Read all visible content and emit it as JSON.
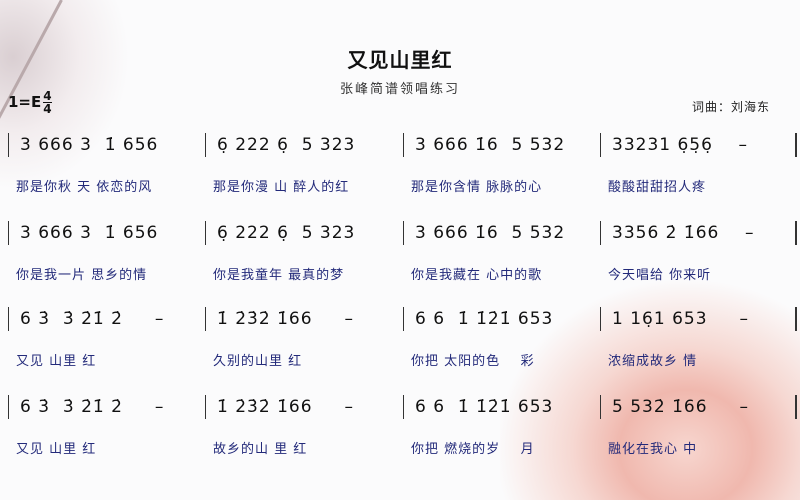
{
  "title": "又见山里红",
  "subtitle": "张峰简谱领唱练习",
  "key": "1=E",
  "time_signature": {
    "numerator": "4",
    "denominator": "4"
  },
  "credit": "词曲：刘海东",
  "rows": [
    {
      "measures": [
        {
          "notes": "3 666 3  1̇ 656",
          "lyrics": "那是你秋 天 依恋的风"
        },
        {
          "notes": "6̣ 222 6̣  5 323",
          "lyrics": "那是你漫 山 醉人的红"
        },
        {
          "notes": "3 666 1̇6  5 532",
          "lyrics": "那是你含情 脉脉的心"
        },
        {
          "notes": "33231 6̣5̣6̣    –",
          "lyrics": "酸酸甜甜招人疼"
        }
      ]
    },
    {
      "measures": [
        {
          "notes": "3 666 3  1̇ 656",
          "lyrics": "你是我一片 思乡的情"
        },
        {
          "notes": "6̣ 222 6̣  5 323",
          "lyrics": "你是我童年 最真的梦"
        },
        {
          "notes": "3 666 1̇6  5 532",
          "lyrics": "你是我藏在 心中的歌"
        },
        {
          "notes": "3356 2̇ 1̇66    –",
          "lyrics": "今天唱给 你来听"
        }
      ]
    },
    {
      "measures": [
        {
          "notes": "6 3̇  3̇ 2̇1̇ 2̇     –",
          "lyrics": "又见 山里 红"
        },
        {
          "notes": "1̇ 2̇3̇2̇ 1̇66     –",
          "lyrics": "久别的山里 红"
        },
        {
          "notes": "6 6  1̇ 1̇2̇1̇ 653",
          "lyrics": "你把 太阳的色    彩"
        },
        {
          "notes": "1 16̣1 653     –",
          "lyrics": "浓缩成故乡 情"
        }
      ]
    },
    {
      "measures": [
        {
          "notes": "6 3̇  3̇ 2̇1̇ 2̇     –",
          "lyrics": "又见 山里 红"
        },
        {
          "notes": "1̇ 2̇3̇2̇ 1̇66     –",
          "lyrics": "故乡的山 里 红"
        },
        {
          "notes": "6 6  1̇ 1̇2̇1̇ 653",
          "lyrics": "你把 燃烧的岁    月"
        },
        {
          "notes": "5 532̇ 1̇66     –",
          "lyrics": "融化在我心 中"
        }
      ]
    }
  ]
}
